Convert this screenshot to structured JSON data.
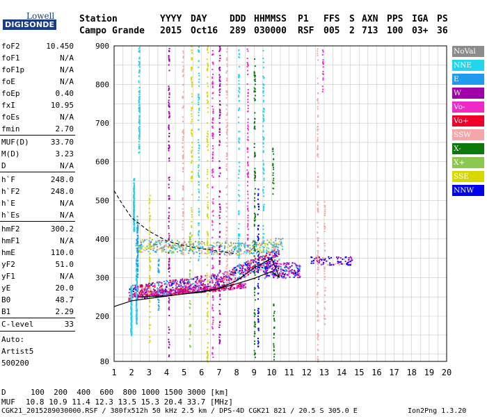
{
  "logo": {
    "top": "Lowell",
    "bottom": "DIGISONDE"
  },
  "header": {
    "labels": [
      "Station",
      "YYYY",
      "DAY",
      "DDD",
      "HHMMSS",
      "P1",
      "FFS",
      "S",
      "AXN",
      "PPS",
      "IGA",
      "PS"
    ],
    "station_name": "Campo Grande",
    "year": "2015",
    "day": "Oct16",
    "ddd": "289",
    "time": "030000",
    "p1": "RSF",
    "ffs": "005",
    "s": "2",
    "axn": "713",
    "pps": "100",
    "iga": "03+",
    "ps": "36"
  },
  "params_group1": [
    {
      "key": "foF2",
      "value": "10.450"
    },
    {
      "key": "foF1",
      "value": "N/A"
    },
    {
      "key": "foF1p",
      "value": "N/A"
    },
    {
      "key": "foE",
      "value": "N/A"
    },
    {
      "key": "foEp",
      "value": "0.40"
    },
    {
      "key": "fxI",
      "value": "10.95"
    },
    {
      "key": "foEs",
      "value": "N/A"
    },
    {
      "key": "fmin",
      "value": "2.70"
    }
  ],
  "params_group2": [
    {
      "key": "MUF(D)",
      "value": "33.70"
    },
    {
      "key": "M(D)",
      "value": "3.23"
    },
    {
      "key": "D",
      "value": "N/A"
    }
  ],
  "params_group3": [
    {
      "key": "h`F",
      "value": "248.0"
    },
    {
      "key": "h`F2",
      "value": "248.0"
    },
    {
      "key": "h`E",
      "value": "N/A"
    },
    {
      "key": "h`Es",
      "value": "N/A"
    }
  ],
  "params_group4": [
    {
      "key": "hmF2",
      "value": "300.2"
    },
    {
      "key": "hmF1",
      "value": "N/A"
    },
    {
      "key": "hmE",
      "value": "110.0"
    },
    {
      "key": "yF2",
      "value": "51.0"
    },
    {
      "key": "yF1",
      "value": "N/A"
    },
    {
      "key": "yE",
      "value": "20.0"
    },
    {
      "key": "B0",
      "value": "48.7"
    },
    {
      "key": "B1",
      "value": "2.29"
    }
  ],
  "clevel": {
    "key": "C-level",
    "value": "33"
  },
  "auto": [
    "Auto:",
    "Artist5",
    "500200"
  ],
  "legend": [
    {
      "label": "NoVal",
      "color": "#8c8c8c"
    },
    {
      "label": "NNE",
      "color": "#22d4ee"
    },
    {
      "label": "E",
      "color": "#1e9bf0"
    },
    {
      "label": "W",
      "color": "#a000a8"
    },
    {
      "label": "Vo-",
      "color": "#ee2ac8"
    },
    {
      "label": "Vo+",
      "color": "#f00028"
    },
    {
      "label": "SSW",
      "color": "#f5a6a6"
    },
    {
      "label": "X-",
      "color": "#0b7a0b"
    },
    {
      "label": "X+",
      "color": "#8cc850"
    },
    {
      "label": "SSE",
      "color": "#d8d800"
    },
    {
      "label": "NNW",
      "color": "#0000f0"
    }
  ],
  "chart_data": {
    "type": "scatter",
    "xlabel": "",
    "ylabel": "",
    "xlim": [
      1,
      20
    ],
    "ylim": [
      80,
      900
    ],
    "x_ticks": [
      "1",
      "2",
      "3",
      "4",
      "5",
      "6",
      "7",
      "8",
      "9",
      "10",
      "11",
      "12",
      "13",
      "14",
      "15",
      "16",
      "17",
      "18",
      "19",
      "20"
    ],
    "y_ticks": [
      "200",
      "300",
      "400",
      "500",
      "600",
      "700",
      "800",
      "900"
    ],
    "y_tick_values": [
      200,
      300,
      400,
      500,
      600,
      700,
      800,
      900
    ],
    "y_bottom_label": "80",
    "grid": true,
    "profile_line": {
      "x": [
        1.0,
        2.0,
        3.0,
        4.0,
        5.0,
        6.0,
        7.0,
        8.0,
        9.0,
        10.0,
        10.45
      ],
      "y": [
        225,
        240,
        246,
        252,
        258,
        264,
        272,
        284,
        298,
        316,
        300
      ]
    },
    "trace_line": {
      "x": [
        2.4,
        4.0,
        6.0,
        7.0,
        8.0,
        9.0,
        10.0,
        10.45
      ],
      "y": [
        250,
        253,
        262,
        272,
        292,
        325,
        350,
        300
      ]
    },
    "dashed_curve": {
      "x": [
        1.0,
        1.5,
        2.0,
        3.0,
        4.0,
        5.0,
        6.0,
        7.0,
        8.0
      ],
      "y": [
        525,
        488,
        455,
        420,
        395,
        383,
        375,
        368,
        362
      ]
    }
  },
  "footer": {
    "d_label": "D",
    "d_values": "100  200  400  600  800 1000 1500 3000 [km]",
    "muf_label": "MUF",
    "muf_values": "10.8 10.9 11.4 12.3 13.5 15.3 20.4 33.7 [MHz]",
    "file_line": "CGK21_2015289030000.RSF / 380fx512h 50 kHz 2.5 km / DPS-4D CGK21 821 / 20.5 S 305.0 E",
    "program": "Ion2Png 1.3.20"
  }
}
